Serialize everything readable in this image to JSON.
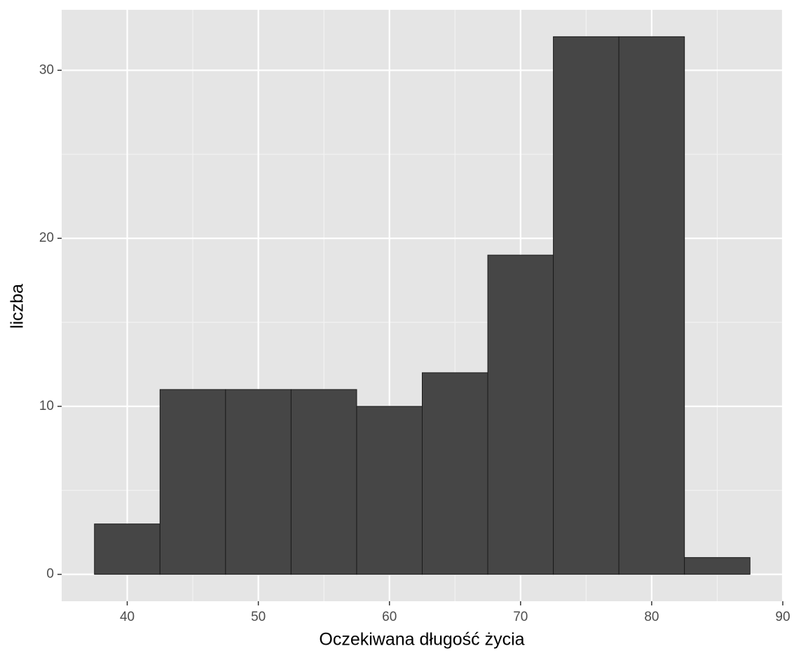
{
  "chart_data": {
    "type": "histogram",
    "x_label": "Oczekiwana długość życia",
    "y_label": "liczba",
    "bins": [
      37.5,
      42.5,
      47.5,
      52.5,
      57.5,
      62.5,
      67.5,
      72.5,
      77.5,
      82.5,
      87.5
    ],
    "values": [
      3,
      11,
      11,
      11,
      10,
      12,
      19,
      32,
      32,
      1
    ],
    "color": "#464646",
    "edge_color": "#1a1a1a",
    "xlim": [
      35,
      90
    ],
    "xticks": [
      40,
      50,
      60,
      70,
      80,
      90
    ],
    "ylim": [
      -1.6,
      33.6
    ],
    "yticks": [
      0,
      10,
      20,
      30
    ],
    "xminor": [
      45,
      55,
      65,
      75,
      85
    ],
    "yminor": [
      5,
      15,
      25
    ],
    "grid": true
  }
}
